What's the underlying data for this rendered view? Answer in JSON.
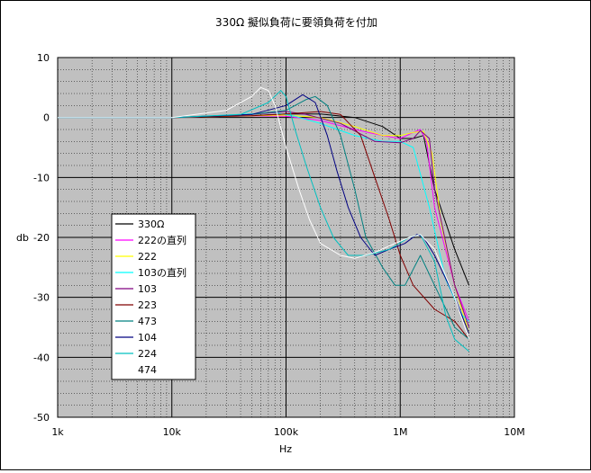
{
  "chart_data": {
    "type": "line",
    "title": "330Ω 擬似負荷に要領負荷を付加",
    "xlabel": "Hz",
    "ylabel": "db",
    "x_scale": "log",
    "xlim": [
      1000,
      10000000
    ],
    "ylim": [
      -50,
      10
    ],
    "x_tick_values": [
      1000,
      10000,
      100000,
      1000000,
      10000000
    ],
    "x_tick_labels": [
      "1k",
      "10k",
      "100k",
      "1M",
      "10M"
    ],
    "y_tick_values": [
      10,
      0,
      -10,
      -20,
      -30,
      -40,
      -50
    ],
    "y_tick_labels": [
      "10",
      "0",
      "-10",
      "-20",
      "-30",
      "-40",
      "-50"
    ],
    "grid": true,
    "plot_background": "#c0c0c0",
    "legend_position": "left-center",
    "series": [
      {
        "name": "330Ω",
        "color": "#000000",
        "points": [
          [
            1000,
            0
          ],
          [
            10000,
            0
          ],
          [
            50000,
            0.3
          ],
          [
            100000,
            0.6
          ],
          [
            200000,
            0.6
          ],
          [
            400000,
            0
          ],
          [
            700000,
            -1.5
          ],
          [
            1000000,
            -3.5
          ],
          [
            1300000,
            -3.5
          ],
          [
            1600000,
            -3
          ],
          [
            2000000,
            -12
          ],
          [
            3000000,
            -22
          ],
          [
            4000000,
            -28
          ]
        ]
      },
      {
        "name": "222の直列",
        "color": "#ff00ff",
        "points": [
          [
            1000,
            0
          ],
          [
            10000,
            0
          ],
          [
            50000,
            0.3
          ],
          [
            100000,
            0.2
          ],
          [
            200000,
            -0.5
          ],
          [
            400000,
            -2
          ],
          [
            700000,
            -3
          ],
          [
            1000000,
            -3.5
          ],
          [
            1300000,
            -2.5
          ],
          [
            1500000,
            -2
          ],
          [
            1700000,
            -4
          ],
          [
            2000000,
            -15
          ],
          [
            3000000,
            -28
          ],
          [
            4000000,
            -34
          ]
        ]
      },
      {
        "name": "222",
        "color": "#ffff00",
        "points": [
          [
            1000,
            0
          ],
          [
            10000,
            0
          ],
          [
            50000,
            0.3
          ],
          [
            100000,
            0.4
          ],
          [
            200000,
            0
          ],
          [
            400000,
            -1.5
          ],
          [
            700000,
            -3
          ],
          [
            1000000,
            -3
          ],
          [
            1300000,
            -2.5
          ],
          [
            1600000,
            -2.3
          ],
          [
            1900000,
            -6
          ],
          [
            2300000,
            -18
          ],
          [
            3000000,
            -28
          ],
          [
            4000000,
            -36
          ]
        ]
      },
      {
        "name": "103の直列",
        "color": "#00ffff",
        "points": [
          [
            1000,
            0
          ],
          [
            10000,
            0
          ],
          [
            40000,
            0.5
          ],
          [
            80000,
            0.8
          ],
          [
            120000,
            0.2
          ],
          [
            200000,
            -1
          ],
          [
            400000,
            -3
          ],
          [
            700000,
            -4
          ],
          [
            1000000,
            -4
          ],
          [
            1300000,
            -5
          ],
          [
            1800000,
            -15
          ],
          [
            2500000,
            -27
          ],
          [
            3500000,
            -33
          ],
          [
            4000000,
            -34
          ]
        ]
      },
      {
        "name": "103",
        "color": "#800080",
        "points": [
          [
            1000,
            0
          ],
          [
            10000,
            0
          ],
          [
            50000,
            0.5
          ],
          [
            100000,
            1
          ],
          [
            150000,
            0.5
          ],
          [
            300000,
            -1
          ],
          [
            600000,
            -4
          ],
          [
            1000000,
            -4.2
          ],
          [
            1300000,
            -3.5
          ],
          [
            1500000,
            -2.2
          ],
          [
            1800000,
            -3.5
          ],
          [
            2000000,
            -12
          ],
          [
            3000000,
            -28
          ],
          [
            4000000,
            -35
          ]
        ]
      },
      {
        "name": "223",
        "color": "#800000",
        "points": [
          [
            1000,
            0
          ],
          [
            10000,
            0
          ],
          [
            50000,
            0.3
          ],
          [
            100000,
            0.6
          ],
          [
            200000,
            1
          ],
          [
            300000,
            0.5
          ],
          [
            450000,
            -3
          ],
          [
            600000,
            -10
          ],
          [
            800000,
            -17
          ],
          [
            1000000,
            -23
          ],
          [
            1300000,
            -28
          ],
          [
            2000000,
            -32
          ],
          [
            3000000,
            -34
          ],
          [
            4000000,
            -37
          ]
        ]
      },
      {
        "name": "473",
        "color": "#008080",
        "points": [
          [
            1000,
            0
          ],
          [
            10000,
            0
          ],
          [
            50000,
            0.5
          ],
          [
            100000,
            1.2
          ],
          [
            150000,
            3
          ],
          [
            180000,
            3.5
          ],
          [
            230000,
            2
          ],
          [
            300000,
            -3
          ],
          [
            400000,
            -12
          ],
          [
            500000,
            -20
          ],
          [
            700000,
            -25
          ],
          [
            900000,
            -28
          ],
          [
            1100000,
            -28
          ],
          [
            1500000,
            -23
          ],
          [
            2000000,
            -28
          ],
          [
            3000000,
            -35
          ],
          [
            4000000,
            -37
          ]
        ]
      },
      {
        "name": "104",
        "color": "#000080",
        "points": [
          [
            1000,
            0
          ],
          [
            10000,
            0
          ],
          [
            50000,
            0.5
          ],
          [
            100000,
            2
          ],
          [
            140000,
            3.8
          ],
          [
            180000,
            2.5
          ],
          [
            230000,
            -3
          ],
          [
            280000,
            -9
          ],
          [
            350000,
            -15
          ],
          [
            450000,
            -20
          ],
          [
            600000,
            -23
          ],
          [
            800000,
            -22
          ],
          [
            1100000,
            -21
          ],
          [
            1400000,
            -19.5
          ],
          [
            1600000,
            -20
          ],
          [
            2000000,
            -23
          ],
          [
            3000000,
            -30
          ],
          [
            4000000,
            -36
          ]
        ]
      },
      {
        "name": "224",
        "color": "#00c0c0",
        "points": [
          [
            1000,
            0
          ],
          [
            10000,
            0
          ],
          [
            40000,
            0.5
          ],
          [
            70000,
            2.5
          ],
          [
            90000,
            4.5
          ],
          [
            100000,
            3.5
          ],
          [
            120000,
            -2
          ],
          [
            150000,
            -8
          ],
          [
            200000,
            -15
          ],
          [
            260000,
            -20
          ],
          [
            350000,
            -23
          ],
          [
            500000,
            -23
          ],
          [
            800000,
            -22
          ],
          [
            1200000,
            -20
          ],
          [
            1500000,
            -19.5
          ],
          [
            2000000,
            -24
          ],
          [
            2500000,
            -33
          ],
          [
            3000000,
            -37
          ],
          [
            4000000,
            -39
          ]
        ]
      },
      {
        "name": "474",
        "color": "#ffffff",
        "points": [
          [
            1000,
            0
          ],
          [
            10000,
            0
          ],
          [
            30000,
            1.2
          ],
          [
            50000,
            3.5
          ],
          [
            60000,
            5
          ],
          [
            70000,
            4.5
          ],
          [
            80000,
            2
          ],
          [
            100000,
            -5
          ],
          [
            130000,
            -12
          ],
          [
            160000,
            -17
          ],
          [
            200000,
            -21
          ],
          [
            300000,
            -23
          ],
          [
            400000,
            -23.5
          ],
          [
            600000,
            -22.5
          ],
          [
            900000,
            -21
          ],
          [
            1200000,
            -20
          ],
          [
            1500000,
            -19.5
          ],
          [
            2000000,
            -22
          ],
          [
            3000000,
            -30
          ],
          [
            4000000,
            -37
          ]
        ]
      }
    ]
  }
}
